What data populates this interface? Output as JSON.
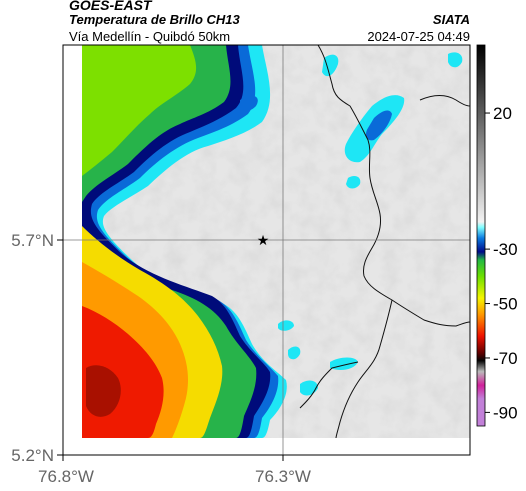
{
  "header": {
    "satellite": "GOES-EAST",
    "product": "Temperatura de Brillo CH13",
    "region": "Vía Medellín - Quibdó 50km",
    "organization": "SIATA",
    "datetime": "2024-07-25 04:49"
  },
  "axes": {
    "lat_labels": [
      "5.7°N",
      "5.2°N"
    ],
    "lon_labels": [
      "76.8°W",
      "76.3°W"
    ]
  },
  "colorbar": {
    "tick_labels": [
      "20",
      "-30",
      "-50",
      "-70",
      "-90"
    ],
    "stops": [
      {
        "value": 45,
        "color": "#000000"
      },
      {
        "value": -20,
        "color": "#f2f2f2"
      },
      {
        "value": -22,
        "color": "#7fffff"
      },
      {
        "value": -26,
        "color": "#0b7ae0"
      },
      {
        "value": -31,
        "color": "#000a8a"
      },
      {
        "value": -34,
        "color": "#22b844"
      },
      {
        "value": -40,
        "color": "#6ce000"
      },
      {
        "value": -48,
        "color": "#f5f500"
      },
      {
        "value": -54,
        "color": "#ff9900"
      },
      {
        "value": -62,
        "color": "#ee1100"
      },
      {
        "value": -68,
        "color": "#660000"
      },
      {
        "value": -71,
        "color": "#050505"
      },
      {
        "value": -75,
        "color": "#bbbbbb"
      },
      {
        "value": -80,
        "color": "#d0209a"
      },
      {
        "value": -85,
        "color": "#c280d8"
      }
    ]
  },
  "marker": {
    "label": "star",
    "symbol": "★"
  },
  "colors": {
    "clear": "#e6e6e6",
    "cyan": "#1ee6f5",
    "blue": "#0a6ad8",
    "navy": "#000b7a",
    "green": "#27b34a",
    "lime": "#7de000",
    "yellow": "#f5dc00",
    "orange": "#ff9a00",
    "red": "#ef1a00",
    "darkred": "#a81000",
    "border": "#111111",
    "grid": "#7a7a7a"
  }
}
